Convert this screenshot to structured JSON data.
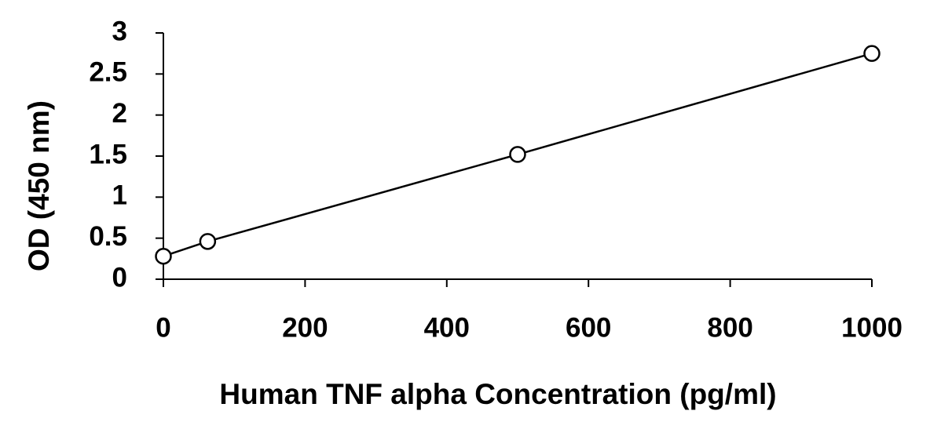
{
  "chart_data": {
    "type": "scatter",
    "x_label": "Human TNF alpha Concentration (pg/ml)",
    "y_label": "OD (450 nm)",
    "series": [
      {
        "x": [
          0,
          62.5,
          500,
          1000
        ],
        "values": [
          0.28,
          0.46,
          1.52,
          2.75
        ],
        "color": "#000000"
      }
    ],
    "xlim": [
      0,
      1000
    ],
    "xticks": [
      0,
      200,
      400,
      600,
      800,
      1000
    ],
    "ylim": [
      0,
      3
    ],
    "yticks": [
      0,
      0.5,
      1,
      1.5,
      2,
      2.5,
      3
    ],
    "grid": false,
    "connect": true
  }
}
